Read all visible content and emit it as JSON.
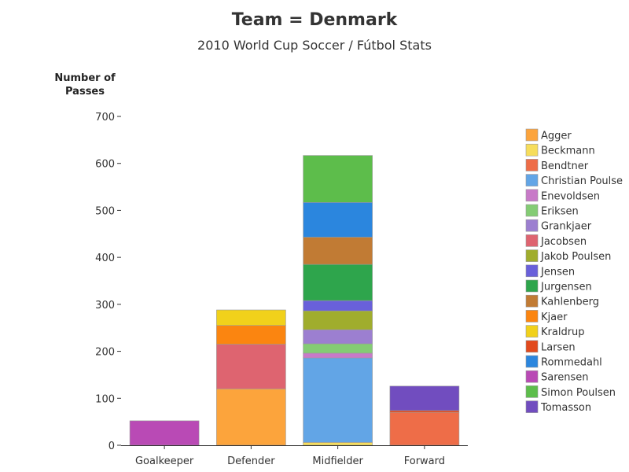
{
  "chart_data": {
    "type": "bar",
    "stacked": true,
    "title": "Team = Denmark",
    "subtitle": "2010 World Cup Soccer / Fútbol Stats",
    "ylabel_line1": "Number of",
    "ylabel_line2": "Passes",
    "xlabel": "",
    "ylim": [
      0,
      700
    ],
    "yticks": [
      0,
      100,
      200,
      300,
      400,
      500,
      600,
      700
    ],
    "grid": false,
    "legend_position": "right",
    "categories": [
      "Goalkeeper",
      "Defender",
      "Midfielder",
      "Forward"
    ],
    "series": [
      {
        "name": "Agger",
        "color": "#FCA43C",
        "values": [
          0,
          120,
          0,
          0
        ]
      },
      {
        "name": "Beckmann",
        "color": "#F6DD5B",
        "values": [
          0,
          0,
          6,
          0
        ]
      },
      {
        "name": "Bendtner",
        "color": "#EE6D48",
        "values": [
          0,
          0,
          0,
          70
        ]
      },
      {
        "name": "Christian Poulse",
        "color": "#62A5E6",
        "values": [
          0,
          0,
          180,
          0
        ]
      },
      {
        "name": "Enevoldsen",
        "color": "#C87AC8",
        "values": [
          0,
          0,
          10,
          0
        ]
      },
      {
        "name": "Eriksen",
        "color": "#84CC74",
        "values": [
          0,
          0,
          20,
          0
        ]
      },
      {
        "name": "Grankjaer",
        "color": "#9C7FD0",
        "values": [
          0,
          0,
          30,
          0
        ]
      },
      {
        "name": "Jacobsen",
        "color": "#DE6470",
        "values": [
          0,
          95,
          0,
          0
        ]
      },
      {
        "name": "Jakob Poulsen",
        "color": "#A0AD2D",
        "values": [
          0,
          0,
          40,
          0
        ]
      },
      {
        "name": "Jensen",
        "color": "#6960DA",
        "values": [
          0,
          0,
          22,
          0
        ]
      },
      {
        "name": "Jurgensen",
        "color": "#2EA54C",
        "values": [
          0,
          0,
          77,
          0
        ]
      },
      {
        "name": "Kahlenberg",
        "color": "#C17B34",
        "values": [
          0,
          0,
          58,
          0
        ]
      },
      {
        "name": "Kjaer",
        "color": "#FB8510",
        "values": [
          0,
          40,
          0,
          0
        ]
      },
      {
        "name": "Kraldrup",
        "color": "#F1D11B",
        "values": [
          0,
          33,
          0,
          0
        ]
      },
      {
        "name": "Larsen",
        "color": "#E24A1D",
        "values": [
          0,
          0,
          0,
          4
        ]
      },
      {
        "name": "Rommedahl",
        "color": "#2B86DE",
        "values": [
          0,
          0,
          74,
          0
        ]
      },
      {
        "name": "Sarensen",
        "color": "#B94AB5",
        "values": [
          52,
          0,
          0,
          0
        ]
      },
      {
        "name": "Simon Poulsen",
        "color": "#5DBD4B",
        "values": [
          0,
          0,
          100,
          0
        ]
      },
      {
        "name": "Tomasson",
        "color": "#714DBF",
        "values": [
          0,
          0,
          0,
          52
        ]
      }
    ]
  }
}
